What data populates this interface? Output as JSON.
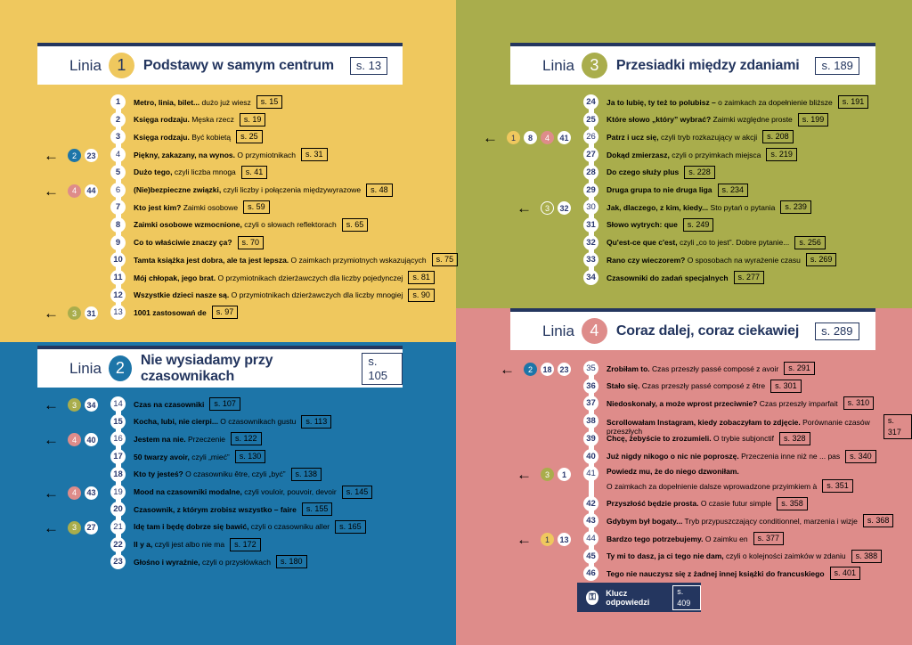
{
  "colors": {
    "line1": "#efc85e",
    "line2": "#1d75a8",
    "line3": "#a9ad4c",
    "line4": "#de8c8a",
    "navy": "#24365f"
  },
  "lines": [
    {
      "linia_label": "Linia",
      "number": "1",
      "title": "Podstawy w samym centrum",
      "page": "s. 13",
      "stations": [
        {
          "n": "1",
          "bold": "Metro, linia, bilet...",
          "rest": " dużo już wiesz",
          "page": "s. 15"
        },
        {
          "n": "2",
          "bold": "Księga rodzaju.",
          "rest": " Męska rzecz",
          "page": "s. 19"
        },
        {
          "n": "3",
          "bold": "Księga rodzaju.",
          "rest": " Być kobietą",
          "page": "s. 25"
        },
        {
          "n": "4",
          "bold": "Piękny, zakazany, na wynos.",
          "rest": " O przymiotnikach",
          "page": "s. 31",
          "transfer": [
            {
              "line": "2",
              "station": "23"
            }
          ]
        },
        {
          "n": "5",
          "bold": "Dużo tego,",
          "rest": " czyli liczba mnoga",
          "page": "s. 41"
        },
        {
          "n": "6",
          "bold": "(Nie)bezpieczne związki,",
          "rest": " czyli liczby i połączenia międzywyrazowe",
          "page": "s. 48",
          "transfer": [
            {
              "line": "4",
              "station": "44"
            }
          ]
        },
        {
          "n": "7",
          "bold": "Kto jest kim?",
          "rest": " Zaimki osobowe",
          "page": "s. 59"
        },
        {
          "n": "8",
          "bold": "Zaimki osobowe wzmocnione,",
          "rest": " czyli o słowach reflektorach",
          "page": "s. 65"
        },
        {
          "n": "9",
          "bold": "Co to właściwie znaczy ça?",
          "rest": "",
          "page": "s. 70"
        },
        {
          "n": "10",
          "bold": "Tamta książka jest dobra, ale ta jest lepsza.",
          "rest": " O zaimkach przymiotnych wskazujących",
          "page": "s. 75"
        },
        {
          "n": "11",
          "bold": "Mój chłopak, jego brat.",
          "rest": " O przymiotnikach dzierżawczych dla liczby pojedynczej",
          "page": "s. 81"
        },
        {
          "n": "12",
          "bold": "Wszystkie dzieci nasze są.",
          "rest": " O przymiotnikach dzierżawczych dla liczby mnogiej",
          "page": "s. 90"
        },
        {
          "n": "13",
          "bold": "1001 zastosowań de",
          "rest": "",
          "page": "s. 97",
          "transfer": [
            {
              "line": "3",
              "station": "31"
            }
          ]
        }
      ]
    },
    {
      "linia_label": "Linia",
      "number": "2",
      "title": "Nie wysiadamy przy czasownikach",
      "page": "s. 105",
      "stations": [
        {
          "n": "14",
          "bold": "Czas na czasowniki",
          "rest": "",
          "page": "s. 107",
          "transfer": [
            {
              "line": "3",
              "station": "34"
            }
          ]
        },
        {
          "n": "15",
          "bold": "Kocha, lubi, nie cierpi...",
          "rest": " O czasownikach gustu",
          "page": "s. 113"
        },
        {
          "n": "16",
          "bold": "Jestem na nie.",
          "rest": " Przeczenie",
          "page": "s. 122",
          "transfer": [
            {
              "line": "4",
              "station": "40"
            }
          ]
        },
        {
          "n": "17",
          "bold": "50 twarzy avoir,",
          "rest": " czyli „mieć”",
          "page": "s. 130"
        },
        {
          "n": "18",
          "bold": "Kto ty jesteś?",
          "rest": " O czasowniku être, czyli „być”",
          "page": "s. 138"
        },
        {
          "n": "19",
          "bold": "Mood na czasowniki modalne,",
          "rest": " czyli vouloir, pouvoir, devoir",
          "page": "s. 145",
          "transfer": [
            {
              "line": "4",
              "station": "43"
            }
          ]
        },
        {
          "n": "20",
          "bold": "Czasownik, z którym zrobisz wszystko – faire",
          "rest": "",
          "page": "s. 155"
        },
        {
          "n": "21",
          "bold": "Idę tam i będę dobrze się bawić,",
          "rest": " czyli o czasowniku aller",
          "page": "s. 165",
          "transfer": [
            {
              "line": "3",
              "station": "27"
            }
          ]
        },
        {
          "n": "22",
          "bold": "Il y a,",
          "rest": " czyli jest albo nie ma",
          "page": "s. 172"
        },
        {
          "n": "23",
          "bold": "Głośno i wyraźnie,",
          "rest": " czyli o przysłówkach",
          "page": "s. 180"
        }
      ]
    },
    {
      "linia_label": "Linia",
      "number": "3",
      "title": "Przesiadki między zdaniami",
      "page": "s. 189",
      "stations": [
        {
          "n": "24",
          "bold": "Ja to lubię, ty też to polubisz –",
          "rest": " o zaimkach za dopełnienie bliższe",
          "page": "s. 191"
        },
        {
          "n": "25",
          "bold": "Które słowo „który” wybrać?",
          "rest": " Zaimki względne proste",
          "page": "s. 199"
        },
        {
          "n": "26",
          "bold": "Patrz i ucz się,",
          "rest": " czyli tryb rozkazujący w akcji",
          "page": "s. 208",
          "transfer": [
            {
              "line": "1",
              "station": "8"
            },
            {
              "line": "4",
              "station": "41"
            }
          ]
        },
        {
          "n": "27",
          "bold": "Dokąd zmierzasz,",
          "rest": " czyli o przyimkach miejsca",
          "page": "s. 219"
        },
        {
          "n": "28",
          "bold": "Do czego służy plus",
          "rest": "",
          "page": "s. 228"
        },
        {
          "n": "29",
          "bold": "Druga grupa to nie druga liga",
          "rest": "",
          "page": "s. 234"
        },
        {
          "n": "30",
          "bold": "Jak, dlaczego, z kim, kiedy...",
          "rest": " Sto pytań o pytania",
          "page": "s. 239",
          "transfer": [
            {
              "line": "3",
              "station": "32",
              "ring": true
            }
          ]
        },
        {
          "n": "31",
          "bold": "Słowo wytrych: que",
          "rest": "",
          "page": "s. 249"
        },
        {
          "n": "32",
          "bold": "Qu'est-ce que c'est,",
          "rest": " czyli „co to jest”. Dobre pytanie...",
          "page": "s. 256"
        },
        {
          "n": "33",
          "bold": "Rano czy wieczorem?",
          "rest": " O sposobach na wyrażenie czasu",
          "page": "s. 269"
        },
        {
          "n": "34",
          "bold": "Czasowniki do zadań specjalnych",
          "rest": "",
          "page": "s. 277"
        }
      ]
    },
    {
      "linia_label": "Linia",
      "number": "4",
      "title": "Coraz dalej, coraz ciekawiej",
      "page": "s. 289",
      "stations": [
        {
          "n": "35",
          "bold": "Zrobiłam to.",
          "rest": " Czas przeszły passé composé z avoir",
          "page": "s. 291",
          "transfer": [
            {
              "line": "2",
              "station": "18"
            },
            {
              "line": "",
              "station": "23"
            }
          ]
        },
        {
          "n": "36",
          "bold": "Stało się.",
          "rest": " Czas przeszły passé composé z être",
          "page": "s. 301"
        },
        {
          "n": "37",
          "bold": "Niedoskonały, a może wprost przeciwnie?",
          "rest": " Czas przeszły imparfait",
          "page": "s. 310"
        },
        {
          "n": "38",
          "bold": "Scrollowałam Instagram, kiedy zobaczyłam to zdjęcie.",
          "rest": " Porównanie czasów przeszłych",
          "page": "s. 317"
        },
        {
          "n": "39",
          "bold": "Chcę, żebyście to zrozumieli.",
          "rest": " O trybie subjonctif",
          "page": "s. 328"
        },
        {
          "n": "40",
          "bold": "Już nigdy nikogo o nic nie poproszę.",
          "rest": " Przeczenia inne niż ne ... pas",
          "page": "s. 340"
        },
        {
          "n": "41",
          "bold": "Powiedz mu, że do niego dzwoniłam.",
          "rest": "",
          "rest2": "O zaimkach za dopełnienie dalsze wprowadzone przyimkiem à",
          "page": "s. 351",
          "transfer": [
            {
              "line": "3",
              "station": "1"
            }
          ]
        },
        {
          "n": "42",
          "bold": "Przyszłość będzie prosta.",
          "rest": " O czasie futur simple",
          "page": "s. 358"
        },
        {
          "n": "43",
          "bold": "Gdybym był bogaty...",
          "rest": " Tryb przypuszczający conditionnel, marzenia i wizje",
          "page": "s. 368"
        },
        {
          "n": "44",
          "bold": "Bardzo tego potrzebujemy.",
          "rest": " O zaimku en",
          "page": "s. 377",
          "transfer": [
            {
              "line": "1",
              "station": "13"
            }
          ]
        },
        {
          "n": "45",
          "bold": "Ty mi to dasz, ja ci tego nie dam,",
          "rest": " czyli o kolejności zaimków w zdaniu",
          "page": "s. 388"
        },
        {
          "n": "46",
          "bold": "Tego nie nauczysz się z żadnej innej książki do francuskiego",
          "rest": "",
          "page": "s. 401"
        }
      ]
    }
  ],
  "answer_key": {
    "icon": "keyhole-icon",
    "label": "Klucz odpowiedzi",
    "page": "s. 409"
  },
  "arrow_icon": "arrow-left-icon",
  "arrow_glyph": "←"
}
